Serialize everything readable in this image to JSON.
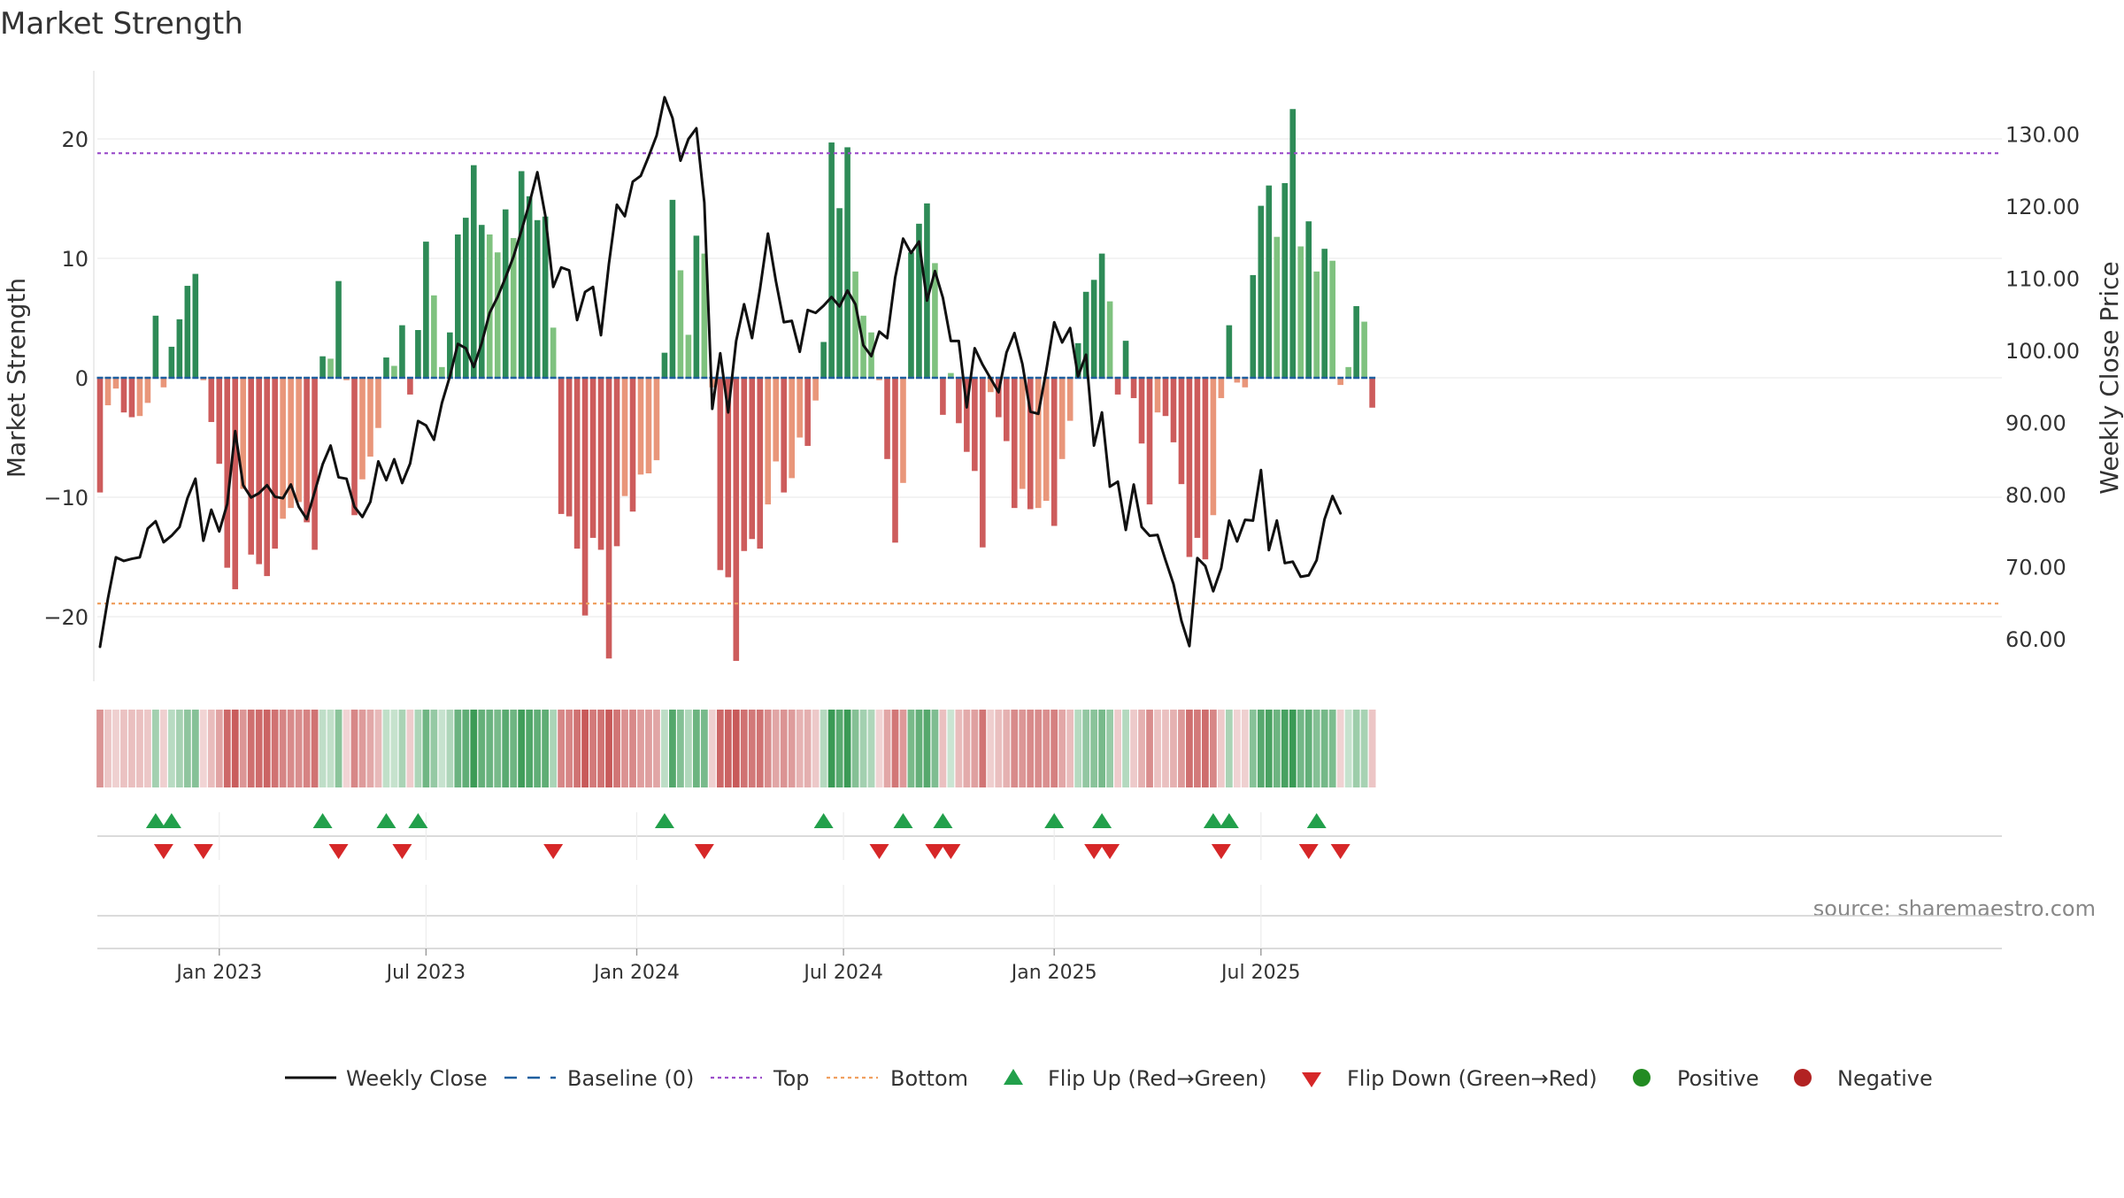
{
  "chart_data": {
    "type": "bar",
    "title": "Market Strength",
    "ylabel_left": "Market Strength",
    "ylabel_right": "Weekly Close Price",
    "source": "source: sharemaestro.com",
    "ylim_left": [
      -25.5,
      25.5
    ],
    "ylim_right": [
      55,
      135
    ],
    "yticks_left": [
      20,
      10,
      0,
      -10,
      -20
    ],
    "ytick_labels_left": [
      "20",
      "10",
      "0",
      "−10",
      "−20"
    ],
    "yticks_right": [
      130,
      120,
      110,
      100,
      90,
      80,
      70,
      60
    ],
    "ytick_labels_right": [
      "130.00",
      "120.00",
      "110.00",
      "100.00",
      "90.00",
      "80.00",
      "70.00",
      "60.00"
    ],
    "top_threshold": 18.8,
    "bottom_threshold": -18.9,
    "x_dates": [
      "Jan 2023",
      "Jul 2023",
      "Jan 2024",
      "Jul 2024",
      "Jan 2025",
      "Jul 2025"
    ],
    "x_date_index": [
      15,
      41,
      67.5,
      93.5,
      120,
      146
    ],
    "strength": [
      -9.6,
      -2.3,
      -0.9,
      -2.9,
      -3.3,
      -3.2,
      -2.1,
      5.2,
      -0.8,
      2.6,
      4.9,
      7.7,
      8.7,
      -0.2,
      -3.7,
      -7.2,
      -15.9,
      -17.7,
      -9.3,
      -14.8,
      -15.6,
      -16.6,
      -14.3,
      -11.8,
      -10.9,
      -10.4,
      -12.1,
      -14.4,
      1.8,
      1.6,
      8.1,
      -0.2,
      -11.5,
      -8.5,
      -6.6,
      -4.2,
      1.7,
      1.0,
      4.4,
      -1.4,
      4.0,
      11.4,
      6.9,
      0.9,
      3.8,
      12.0,
      13.4,
      17.8,
      12.8,
      12.0,
      10.5,
      14.1,
      11.7,
      17.3,
      15.2,
      13.2,
      13.5,
      4.2,
      -11.4,
      -11.6,
      -14.3,
      -19.9,
      -13.4,
      -14.4,
      -23.5,
      -14.1,
      -9.9,
      -11.2,
      -8.1,
      -8.0,
      -6.9,
      2.1,
      14.9,
      9.0,
      3.6,
      11.9,
      10.4,
      -0.8,
      -16.1,
      -16.7,
      -23.7,
      -14.5,
      -13.5,
      -14.3,
      -10.6,
      -7.0,
      -9.6,
      -8.4,
      -5.0,
      -5.7,
      -1.9,
      3.0,
      19.7,
      14.2,
      19.3,
      8.9,
      5.2,
      3.8,
      -0.2,
      -6.8,
      -13.8,
      -8.8,
      10.5,
      12.9,
      14.6,
      9.6,
      -3.1,
      0.4,
      -3.8,
      -6.2,
      -7.8,
      -14.2,
      -1.2,
      -3.3,
      -5.3,
      -10.9,
      -9.3,
      -11.0,
      -10.9,
      -10.3,
      -12.4,
      -6.8,
      -3.6,
      2.9,
      7.2,
      8.2,
      10.4,
      6.4,
      -1.4,
      3.1,
      -1.7,
      -5.5,
      -10.6,
      -2.9,
      -3.2,
      -5.4,
      -8.9,
      -15.0,
      -13.4,
      -15.2,
      -11.5,
      -1.7,
      4.4,
      -0.4,
      -0.8,
      8.6,
      14.4,
      16.1,
      11.8,
      16.3,
      22.5,
      11.0,
      13.1,
      8.9,
      10.8,
      9.8,
      -0.6,
      0.9,
      6.0,
      4.7,
      -2.5
    ],
    "weekly_close": [
      58.9,
      65.6,
      71.3,
      70.8,
      71.1,
      71.3,
      75.3,
      76.3,
      73.4,
      74.3,
      75.5,
      79.5,
      82.2,
      73.6,
      77.9,
      74.9,
      78.7,
      88.8,
      81.3,
      79.6,
      80.2,
      81.3,
      79.7,
      79.5,
      81.4,
      78.3,
      76.6,
      80.4,
      84.2,
      86.8,
      82.4,
      82.2,
      78.3,
      76.9,
      79.0,
      84.6,
      82.0,
      84.9,
      81.6,
      84.3,
      90.2,
      89.6,
      87.6,
      92.7,
      96.4,
      100.9,
      100.3,
      97.7,
      101.0,
      105.2,
      107.4,
      110.1,
      113.0,
      116.6,
      120.4,
      124.7,
      118.7,
      108.8,
      111.5,
      111.1,
      104.2,
      108.1,
      108.8,
      102.1,
      112.0,
      120.2,
      118.6,
      123.4,
      124.2,
      126.9,
      129.8,
      135.1,
      132.2,
      126.3,
      129.3,
      130.8,
      120.5,
      91.9,
      99.6,
      91.4,
      101.3,
      106.4,
      101.7,
      108.5,
      116.2,
      109.6,
      103.9,
      104.1,
      99.8,
      105.6,
      105.2,
      106.2,
      107.4,
      106.1,
      108.3,
      106.4,
      100.7,
      99.2,
      102.6,
      101.7,
      110.1,
      115.5,
      113.5,
      115.1,
      106.9,
      111.0,
      107.3,
      101.3,
      101.3,
      92.1,
      100.3,
      98.0,
      96.1,
      94.2,
      99.7,
      102.4,
      98.1,
      91.5,
      91.2,
      97.2,
      103.9,
      101.1,
      103.1,
      96.4,
      99.4,
      86.8,
      91.4,
      81.1,
      81.8,
      75.1,
      81.4,
      75.5,
      74.3,
      74.4,
      70.9,
      67.6,
      62.5,
      59.0,
      71.2,
      70.1,
      66.6,
      69.8,
      76.4,
      73.5,
      76.5,
      76.4,
      83.4,
      72.3,
      76.4,
      70.5,
      70.7,
      68.6,
      68.8,
      70.9,
      76.6,
      79.8,
      77.4
    ],
    "flip_up_index": [
      7,
      9,
      28,
      36,
      40,
      71,
      91,
      101,
      106,
      120,
      126,
      140,
      142,
      153
    ],
    "flip_down_index": [
      8,
      13,
      30,
      38,
      57,
      76,
      98,
      105,
      107,
      125,
      127,
      141,
      152,
      156
    ],
    "colors": {
      "strong_positive": "#2e8b57",
      "weak_positive": "#7fc27f",
      "strong_negative": "#cd5c5c",
      "weak_negative": "#e9967a",
      "line": "#111111",
      "baseline": "#1f5f9f",
      "top": "#9b4dca",
      "bottom": "#f0a060",
      "flip_up": "#22a04b",
      "flip_down": "#d62728",
      "positive_dot": "#228b22",
      "negative_dot": "#b22222"
    },
    "legend": {
      "weekly_close": "Weekly Close",
      "baseline": "Baseline (0)",
      "top": "Top",
      "bottom": "Bottom",
      "flip_up": "Flip Up (Red→Green)",
      "flip_down": "Flip Down (Green→Red)",
      "positive": "Positive",
      "negative": "Negative"
    },
    "legend_position": "bottom-center"
  }
}
